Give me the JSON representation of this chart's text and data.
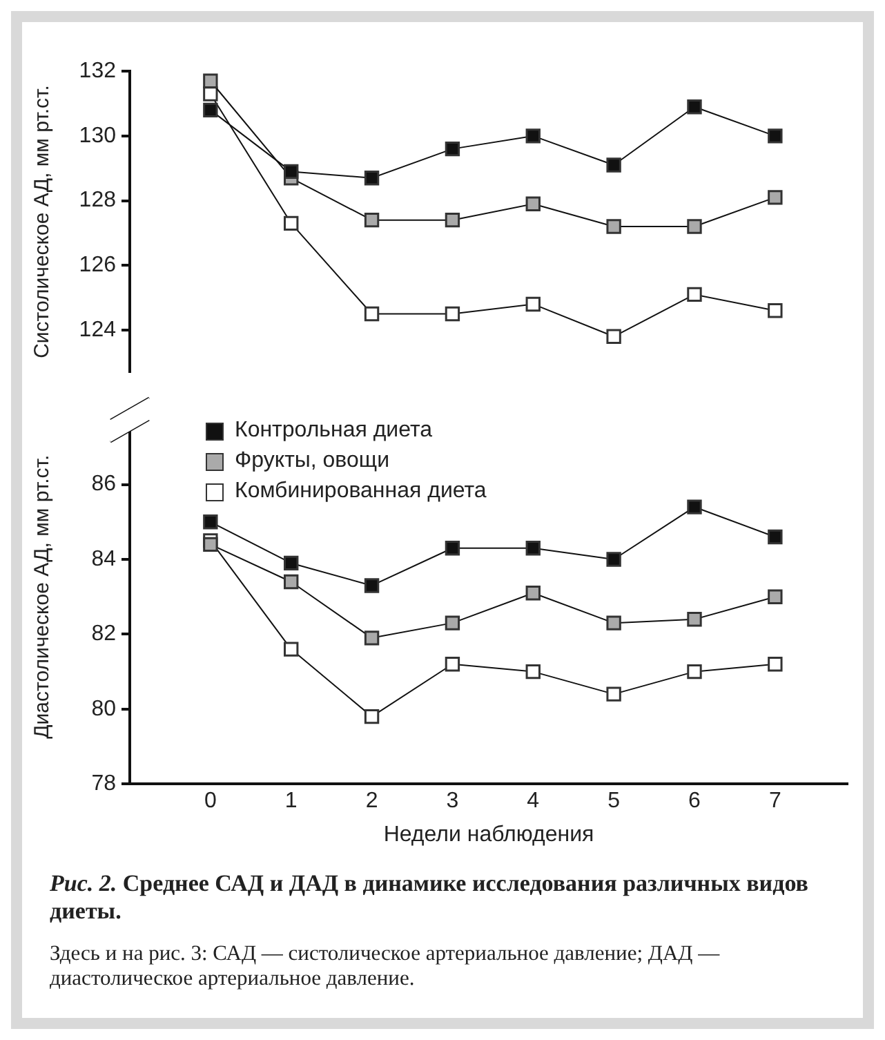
{
  "chart_data": [
    {
      "type": "line",
      "ylabel": "Систолическое АД, мм рт.ст.",
      "categories": [
        "0",
        "1",
        "2",
        "3",
        "4",
        "5",
        "6",
        "7"
      ],
      "ylim": [
        122.7,
        132
      ],
      "yticks": [
        124,
        126,
        128,
        130,
        132
      ],
      "tick_labels": "y",
      "marker": "square",
      "grid": false,
      "legend": false,
      "series": [
        {
          "color": "#111111",
          "values": [
            130.8,
            128.9,
            128.7,
            129.6,
            130.0,
            129.1,
            130.9,
            130.0
          ]
        },
        {
          "color": "#aaaaaa",
          "values": [
            131.7,
            128.7,
            127.4,
            127.4,
            127.9,
            127.2,
            127.2,
            128.1
          ]
        },
        {
          "color": "#ffffff",
          "values": [
            131.3,
            127.3,
            124.5,
            124.5,
            124.8,
            123.8,
            125.1,
            124.6
          ]
        }
      ]
    },
    {
      "type": "line",
      "xlabel": "Недели наблюдения",
      "ylabel": "Диастолическое АД, мм рт.ст.",
      "categories": [
        "0",
        "1",
        "2",
        "3",
        "4",
        "5",
        "6",
        "7"
      ],
      "ylim": [
        78,
        88
      ],
      "yticks": [
        78,
        80,
        82,
        84,
        86
      ],
      "marker": "square",
      "grid": false,
      "legend": "top left",
      "series": [
        {
          "name": "Контрольная диета",
          "color": "#111111",
          "values": [
            85.0,
            83.9,
            83.3,
            84.3,
            84.3,
            84.0,
            85.4,
            84.6
          ]
        },
        {
          "name": "Фрукты, овощи",
          "color": "#aaaaaa",
          "values": [
            84.4,
            83.4,
            81.9,
            82.3,
            83.1,
            82.3,
            82.4,
            83.0
          ]
        },
        {
          "name": "Комбинированная диета",
          "color": "#ffffff",
          "values": [
            84.5,
            81.6,
            79.8,
            81.2,
            81.0,
            80.4,
            81.0,
            81.2
          ]
        }
      ],
      "annotations": [
        "Рис. 2.",
        "Среднее САД и ДАД в динамике исследования различных видов диеты.",
        "Здесь и на рис. 3: САД — систолическое артериальное давление; ДАД — диастолическое артериальное давление."
      ]
    }
  ]
}
